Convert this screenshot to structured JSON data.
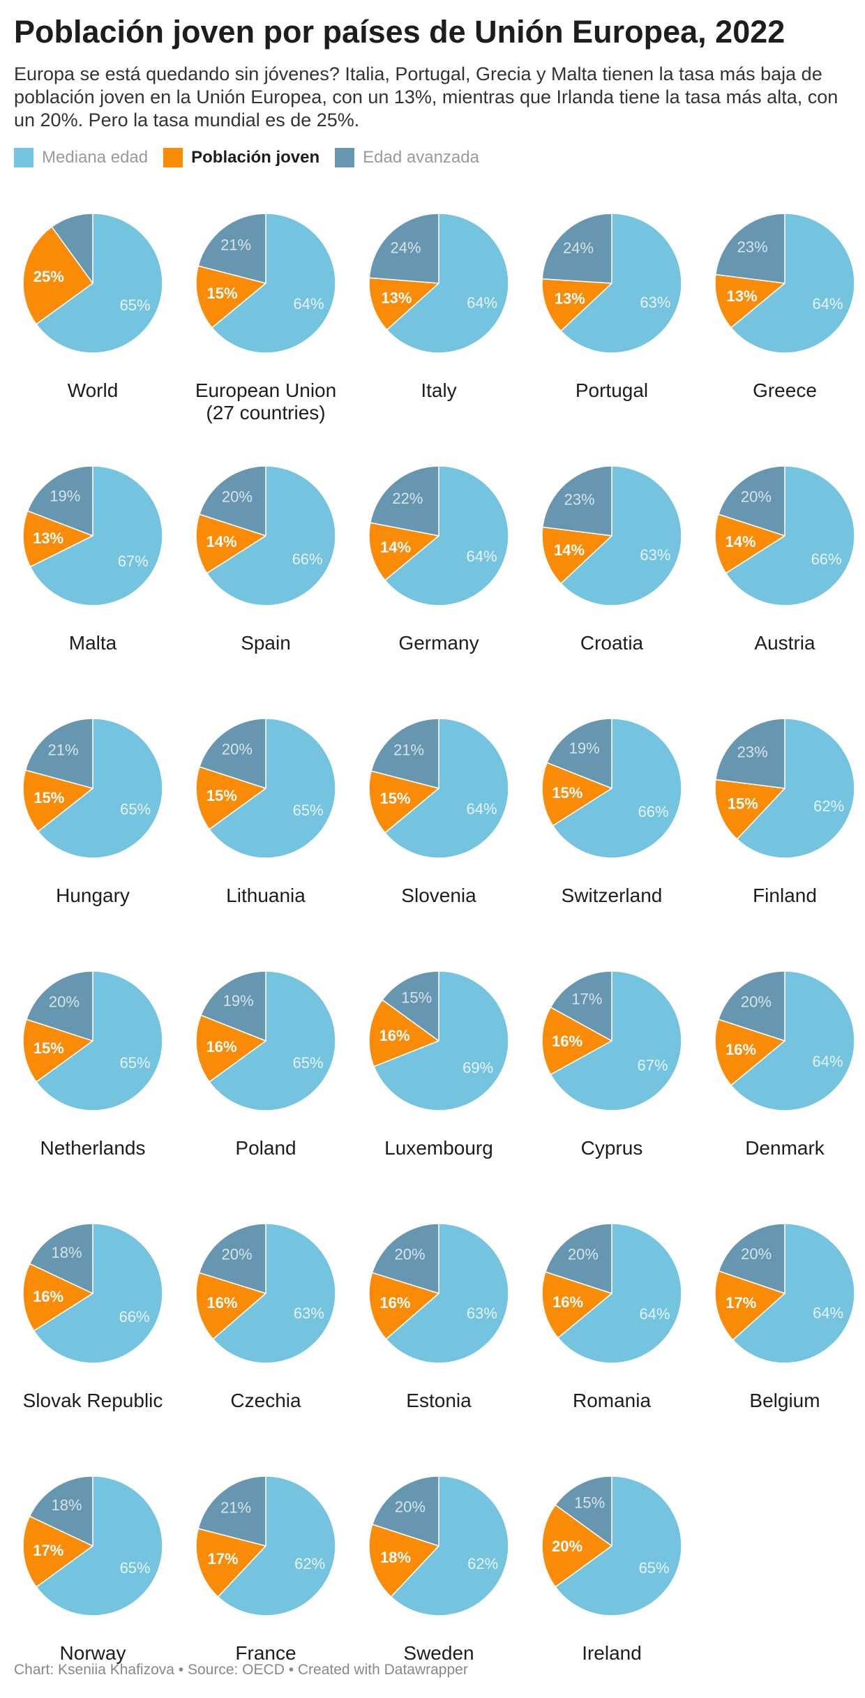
{
  "title": "Población joven por países de Unión Europea, 2022",
  "subtitle": "Europa se está quedando sin jóvenes? Italia, Portugal, Grecia y Malta tienen la tasa más baja de población joven en la Unión Europea, con un 13%, mientras que Irlanda tiene la tasa más alta, con un 20%. Pero la tasa mundial es de 25%.",
  "legend": [
    {
      "label": "Mediana edad",
      "color": "#74c4e0",
      "bold": false
    },
    {
      "label": "Población joven",
      "color": "#f98b07",
      "bold": true
    },
    {
      "label": "Edad avanzada",
      "color": "#6796b0",
      "bold": false
    }
  ],
  "footer": "Chart: Kseniia Khafizova • Source: OECD • Created with Datawrapper",
  "chart_data": {
    "type": "pie",
    "series_names": [
      "Mediana edad",
      "Población joven",
      "Edad avanzada"
    ],
    "colors": {
      "middle": "#74c4e0",
      "young": "#f98b07",
      "old": "#6796b0"
    },
    "countries": [
      {
        "name": "World",
        "middle": 65,
        "young": 25,
        "old": 10,
        "old_label": ""
      },
      {
        "name": "European Union (27 countries)",
        "middle": 64,
        "young": 15,
        "old": 21,
        "old_label": "21%"
      },
      {
        "name": "Italy",
        "middle": 64,
        "young": 13,
        "old": 24,
        "old_label": "24%"
      },
      {
        "name": "Portugal",
        "middle": 63,
        "young": 13,
        "old": 24,
        "old_label": "24%"
      },
      {
        "name": "Greece",
        "middle": 64,
        "young": 13,
        "old": 23,
        "old_label": "23%"
      },
      {
        "name": "Malta",
        "middle": 67,
        "young": 13,
        "old": 19,
        "old_label": "19%"
      },
      {
        "name": "Spain",
        "middle": 66,
        "young": 14,
        "old": 20,
        "old_label": "20%"
      },
      {
        "name": "Germany",
        "middle": 64,
        "young": 14,
        "old": 22,
        "old_label": "22%"
      },
      {
        "name": "Croatia",
        "middle": 63,
        "young": 14,
        "old": 23,
        "old_label": "23%"
      },
      {
        "name": "Austria",
        "middle": 66,
        "young": 14,
        "old": 20,
        "old_label": "20%"
      },
      {
        "name": "Hungary",
        "middle": 65,
        "young": 15,
        "old": 21,
        "old_label": "21%"
      },
      {
        "name": "Lithuania",
        "middle": 65,
        "young": 15,
        "old": 20,
        "old_label": "20%"
      },
      {
        "name": "Slovenia",
        "middle": 64,
        "young": 15,
        "old": 21,
        "old_label": "21%"
      },
      {
        "name": "Switzerland",
        "middle": 66,
        "young": 15,
        "old": 19,
        "old_label": "19%"
      },
      {
        "name": "Finland",
        "middle": 62,
        "young": 15,
        "old": 23,
        "old_label": "23%"
      },
      {
        "name": "Netherlands",
        "middle": 65,
        "young": 15,
        "old": 20,
        "old_label": "20%"
      },
      {
        "name": "Poland",
        "middle": 65,
        "young": 16,
        "old": 19,
        "old_label": "19%"
      },
      {
        "name": "Luxembourg",
        "middle": 69,
        "young": 16,
        "old": 15,
        "old_label": "15%"
      },
      {
        "name": "Cyprus",
        "middle": 67,
        "young": 16,
        "old": 17,
        "old_label": "17%"
      },
      {
        "name": "Denmark",
        "middle": 64,
        "young": 16,
        "old": 20,
        "old_label": "20%"
      },
      {
        "name": "Slovak Republic",
        "middle": 66,
        "young": 16,
        "old": 18,
        "old_label": "18%"
      },
      {
        "name": "Czechia",
        "middle": 63,
        "young": 16,
        "old": 20,
        "old_label": "20%"
      },
      {
        "name": "Estonia",
        "middle": 63,
        "young": 16,
        "old": 20,
        "old_label": "20%"
      },
      {
        "name": "Romania",
        "middle": 64,
        "young": 16,
        "old": 20,
        "old_label": "20%"
      },
      {
        "name": "Belgium",
        "middle": 64,
        "young": 17,
        "old": 20,
        "old_label": "20%"
      },
      {
        "name": "Norway",
        "middle": 65,
        "young": 17,
        "old": 18,
        "old_label": "18%"
      },
      {
        "name": "France",
        "middle": 62,
        "young": 17,
        "old": 21,
        "old_label": "21%"
      },
      {
        "name": "Sweden",
        "middle": 62,
        "young": 18,
        "old": 20,
        "old_label": "20%"
      },
      {
        "name": "Ireland",
        "middle": 65,
        "young": 20,
        "old": 15,
        "old_label": "15%"
      }
    ]
  }
}
